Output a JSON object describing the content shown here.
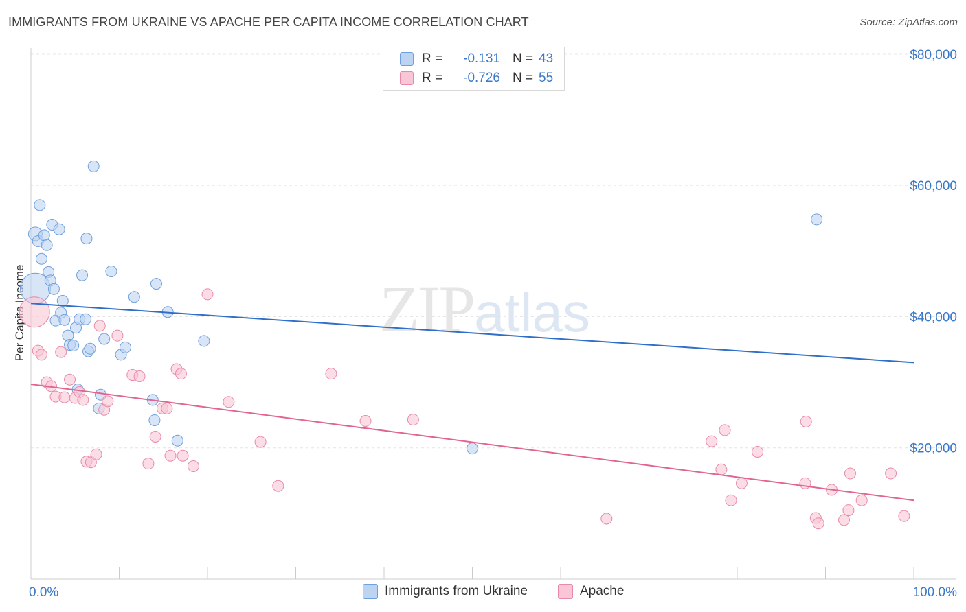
{
  "header": {
    "title": "IMMIGRANTS FROM UKRAINE VS APACHE PER CAPITA INCOME CORRELATION CHART",
    "source": "Source: ZipAtlas.com"
  },
  "watermark": {
    "zip": "ZIP",
    "atlas": "atlas"
  },
  "legend": {
    "rows": [
      {
        "r_label": "R =",
        "r_value": "-0.131",
        "n_label": "N =",
        "n_value": "43"
      },
      {
        "r_label": "R =",
        "r_value": "-0.726",
        "n_label": "N =",
        "n_value": "55"
      }
    ]
  },
  "bottom_legend": {
    "items": [
      {
        "label": "Immigrants from Ukraine"
      },
      {
        "label": "Apache"
      }
    ]
  },
  "chart_data": {
    "type": "scatter",
    "title": "IMMIGRANTS FROM UKRAINE VS APACHE PER CAPITA INCOME CORRELATION CHART",
    "xlabel": "",
    "ylabel": "Per Capita Income",
    "xlim": [
      0,
      100
    ],
    "ylim": [
      0,
      82000
    ],
    "x_tick_labels": [
      "0.0%",
      "100.0%"
    ],
    "y_ticks": [
      20000,
      40000,
      60000,
      80000
    ],
    "y_tick_labels": [
      "$20,000",
      "$40,000",
      "$60,000",
      "$80,000"
    ],
    "grid": true,
    "legend_position": "top-center",
    "colors": {
      "ukraine_fill": "#bcd3f2",
      "ukraine_stroke": "#6f9fdc",
      "ukraine_line": "#2f6fc9",
      "apache_fill": "#f8c6d6",
      "apache_stroke": "#e98aa8",
      "apache_line": "#e06593",
      "tick_label": "#3a78c9"
    },
    "series": [
      {
        "name": "Immigrants from Ukraine",
        "trend": [
          [
            0,
            42000
          ],
          [
            100,
            33000
          ]
        ],
        "points": [
          [
            0.5,
            44300,
            22
          ],
          [
            0.5,
            52600,
            10
          ],
          [
            0.8,
            51500,
            8
          ],
          [
            1.0,
            57000,
            8
          ],
          [
            1.2,
            48800,
            8
          ],
          [
            1.5,
            52400,
            8
          ],
          [
            1.8,
            50900,
            8
          ],
          [
            2.0,
            46800,
            8
          ],
          [
            2.2,
            45500,
            8
          ],
          [
            2.4,
            54000,
            8
          ],
          [
            2.6,
            44200,
            8
          ],
          [
            2.8,
            39400,
            8
          ],
          [
            3.2,
            53300,
            8
          ],
          [
            3.4,
            40600,
            8
          ],
          [
            3.6,
            42400,
            8
          ],
          [
            3.8,
            39500,
            8
          ],
          [
            4.2,
            37100,
            8
          ],
          [
            4.4,
            35700,
            8
          ],
          [
            4.8,
            35600,
            8
          ],
          [
            5.1,
            38300,
            8
          ],
          [
            5.3,
            28900,
            8
          ],
          [
            5.5,
            39600,
            8
          ],
          [
            5.8,
            46300,
            8
          ],
          [
            6.2,
            39600,
            8
          ],
          [
            6.3,
            51900,
            8
          ],
          [
            6.5,
            34700,
            8
          ],
          [
            6.7,
            35100,
            8
          ],
          [
            7.1,
            62900,
            8
          ],
          [
            7.7,
            26000,
            8
          ],
          [
            7.9,
            28100,
            8
          ],
          [
            8.3,
            36600,
            8
          ],
          [
            9.1,
            46900,
            8
          ],
          [
            10.2,
            34200,
            8
          ],
          [
            10.7,
            35300,
            8
          ],
          [
            11.7,
            43000,
            8
          ],
          [
            13.8,
            27300,
            8
          ],
          [
            14.0,
            24200,
            8
          ],
          [
            14.2,
            45000,
            8
          ],
          [
            15.5,
            40700,
            8
          ],
          [
            16.6,
            21100,
            8
          ],
          [
            19.6,
            36300,
            8
          ],
          [
            50.0,
            19900,
            8
          ],
          [
            89.0,
            54800,
            8
          ]
        ]
      },
      {
        "name": "Apache",
        "trend": [
          [
            0,
            29700
          ],
          [
            100,
            12000
          ]
        ],
        "points": [
          [
            0.4,
            40700,
            22
          ],
          [
            0.8,
            34800,
            8
          ],
          [
            1.2,
            34200,
            8
          ],
          [
            1.8,
            30000,
            8
          ],
          [
            2.3,
            29400,
            8
          ],
          [
            2.8,
            27800,
            8
          ],
          [
            3.4,
            34600,
            8
          ],
          [
            3.8,
            27700,
            8
          ],
          [
            4.4,
            30400,
            8
          ],
          [
            5.0,
            27600,
            8
          ],
          [
            5.5,
            28500,
            8
          ],
          [
            5.9,
            27300,
            8
          ],
          [
            6.3,
            17900,
            8
          ],
          [
            6.8,
            17800,
            8
          ],
          [
            7.4,
            19000,
            8
          ],
          [
            7.8,
            38600,
            8
          ],
          [
            8.3,
            25800,
            8
          ],
          [
            8.7,
            27100,
            8
          ],
          [
            9.8,
            37100,
            8
          ],
          [
            11.5,
            31100,
            8
          ],
          [
            12.3,
            30900,
            8
          ],
          [
            13.3,
            17600,
            8
          ],
          [
            14.1,
            21700,
            8
          ],
          [
            14.9,
            26000,
            8
          ],
          [
            15.4,
            26000,
            8
          ],
          [
            15.8,
            18800,
            8
          ],
          [
            16.5,
            32000,
            8
          ],
          [
            17.0,
            31300,
            8
          ],
          [
            17.2,
            18800,
            8
          ],
          [
            18.4,
            17200,
            8
          ],
          [
            20.0,
            43400,
            8
          ],
          [
            22.4,
            27000,
            8
          ],
          [
            26.0,
            20900,
            8
          ],
          [
            28.0,
            14200,
            8
          ],
          [
            34.0,
            31300,
            8
          ],
          [
            37.9,
            24100,
            8
          ],
          [
            43.3,
            24300,
            8
          ],
          [
            65.2,
            9200,
            8
          ],
          [
            77.1,
            21000,
            8
          ],
          [
            78.2,
            16700,
            8
          ],
          [
            78.6,
            22700,
            8
          ],
          [
            79.3,
            12000,
            8
          ],
          [
            80.5,
            14600,
            8
          ],
          [
            82.3,
            19400,
            8
          ],
          [
            87.7,
            14600,
            8
          ],
          [
            87.8,
            24000,
            8
          ],
          [
            88.9,
            9300,
            8
          ],
          [
            89.2,
            8500,
            8
          ],
          [
            90.7,
            13600,
            8
          ],
          [
            92.1,
            9000,
            8
          ],
          [
            92.6,
            10500,
            8
          ],
          [
            92.8,
            16100,
            8
          ],
          [
            94.1,
            12000,
            8
          ],
          [
            97.4,
            16100,
            8
          ],
          [
            98.9,
            9600,
            8
          ]
        ]
      }
    ]
  }
}
